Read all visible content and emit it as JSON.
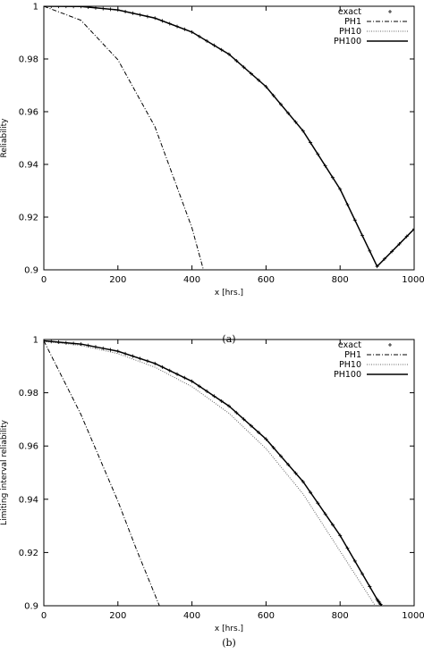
{
  "chart_data": [
    {
      "type": "line",
      "caption": "(a)",
      "xlabel": "x [hrs.]",
      "ylabel": "Reliability",
      "xlim": [
        0,
        1000
      ],
      "ylim": [
        0.9,
        1.0
      ],
      "x_ticks": [
        0,
        200,
        400,
        600,
        800,
        1000
      ],
      "y_ticks": [
        0.9,
        0.92,
        0.94,
        0.96,
        0.98,
        1
      ],
      "x_tick_labels": [
        "0",
        "200",
        "400",
        "600",
        "800",
        "1000"
      ],
      "y_tick_labels": [
        "0.9",
        "0.92",
        "0.94",
        "0.96",
        "0.98",
        "1"
      ],
      "legend_position": "top-right",
      "grid": false,
      "series": [
        {
          "name": "exact",
          "style": "points-plus",
          "x": [
            0,
            100,
            200,
            300,
            400,
            500,
            600,
            700,
            800,
            900,
            1000
          ],
          "y": [
            1.0,
            0.9999,
            0.9986,
            0.9955,
            0.9902,
            0.9818,
            0.9695,
            0.9527,
            0.9306,
            0.9013,
            0.9155
          ]
        },
        {
          "name": "PH1",
          "style": "dash-dot",
          "x": [
            0,
            100,
            200,
            300,
            400,
            431
          ],
          "y": [
            1.0,
            0.9947,
            0.9797,
            0.9543,
            0.9159,
            0.9
          ]
        },
        {
          "name": "PH10",
          "style": "dotted",
          "x": [
            0,
            100,
            200,
            300,
            400,
            500,
            600,
            700,
            800,
            900,
            1000
          ],
          "y": [
            1.0,
            0.9999,
            0.9986,
            0.9955,
            0.9902,
            0.9818,
            0.9695,
            0.9527,
            0.9306,
            0.9013,
            0.9155
          ]
        },
        {
          "name": "PH100",
          "style": "solid",
          "x": [
            0,
            100,
            200,
            300,
            400,
            500,
            600,
            700,
            800,
            900,
            1000
          ],
          "y": [
            1.0,
            0.9999,
            0.9986,
            0.9955,
            0.9902,
            0.9818,
            0.9695,
            0.9527,
            0.9306,
            0.9013,
            0.9155
          ]
        }
      ]
    },
    {
      "type": "line",
      "caption": "(b)",
      "xlabel": "x [hrs.]",
      "ylabel": "Limiting interval reliability",
      "xlim": [
        0,
        1000
      ],
      "ylim": [
        0.9,
        1.0
      ],
      "x_ticks": [
        0,
        200,
        400,
        600,
        800,
        1000
      ],
      "y_ticks": [
        0.9,
        0.92,
        0.94,
        0.96,
        0.98,
        1
      ],
      "x_tick_labels": [
        "0",
        "200",
        "400",
        "600",
        "800",
        "1000"
      ],
      "y_tick_labels": [
        "0.9",
        "0.92",
        "0.94",
        "0.96",
        "0.98",
        "1"
      ],
      "legend_position": "top-right",
      "grid": false,
      "series": [
        {
          "name": "exact",
          "style": "points-plus",
          "x": [
            0,
            100,
            200,
            300,
            400,
            500,
            600,
            700,
            800,
            900,
            912
          ],
          "y": [
            0.9995,
            0.9983,
            0.9956,
            0.991,
            0.9843,
            0.975,
            0.9626,
            0.9466,
            0.9264,
            0.9024,
            0.9
          ]
        },
        {
          "name": "PH1",
          "style": "dash-dot",
          "x": [
            0,
            100,
            200,
            250,
            312
          ],
          "y": [
            0.9995,
            0.9719,
            0.9393,
            0.9212,
            0.9
          ]
        },
        {
          "name": "PH10",
          "style": "dotted",
          "x": [
            0,
            100,
            200,
            300,
            400,
            500,
            600,
            700,
            800,
            895
          ],
          "y": [
            0.9993,
            0.9978,
            0.9947,
            0.9896,
            0.9823,
            0.9723,
            0.959,
            0.942,
            0.9205,
            0.9
          ]
        },
        {
          "name": "PH100",
          "style": "solid",
          "x": [
            0,
            100,
            200,
            300,
            400,
            500,
            600,
            700,
            800,
            900,
            912
          ],
          "y": [
            0.9995,
            0.9983,
            0.9956,
            0.991,
            0.9843,
            0.975,
            0.9626,
            0.9466,
            0.9264,
            0.9024,
            0.9
          ]
        }
      ]
    }
  ]
}
